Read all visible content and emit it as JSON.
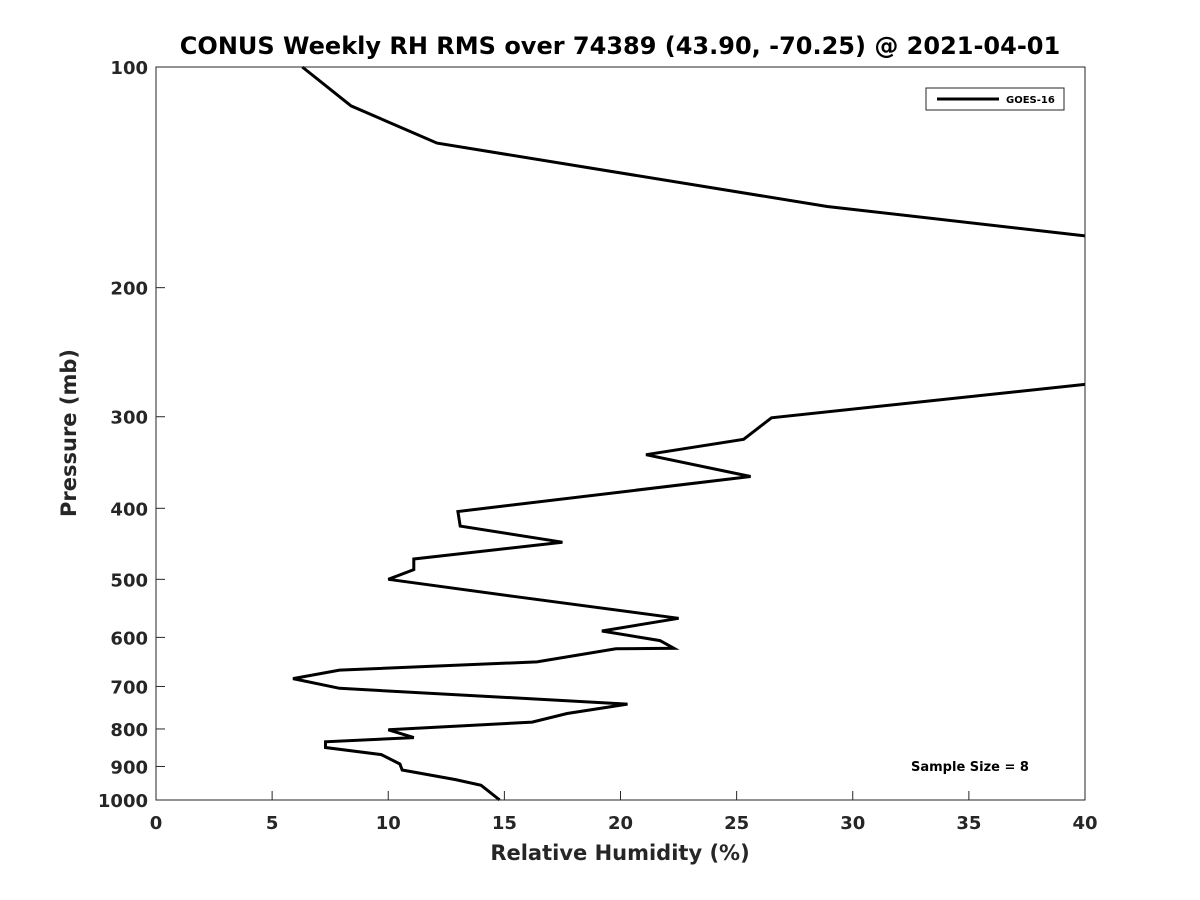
{
  "chart_data": {
    "type": "line",
    "title": "CONUS Weekly RH RMS over 74389 (43.90, -70.25) @ 2021-04-01",
    "xlabel": "Relative Humidity (%)",
    "ylabel": "Pressure (mb)",
    "xlim": [
      0,
      40
    ],
    "ylim": [
      100,
      1000
    ],
    "y_scale": "log",
    "y_direction": "reversed",
    "grid": false,
    "legend_position": "top-right",
    "x_ticks": [
      "0",
      "5",
      "10",
      "15",
      "20",
      "25",
      "30",
      "35",
      "40"
    ],
    "y_ticks": [
      "100",
      "200",
      "300",
      "400",
      "500",
      "600",
      "700",
      "800",
      "900",
      "1000"
    ],
    "annotation": "Sample Size = 8",
    "series": [
      {
        "name": "GOES-16",
        "color": "#000000",
        "segments": [
          [
            [
              6.3,
              100
            ],
            [
              8.4,
              113
            ],
            [
              12.1,
              127
            ],
            [
              28.9,
              155
            ],
            [
              40,
              170
            ]
          ],
          [
            [
              40,
              271
            ],
            [
              26.5,
              301
            ],
            [
              25.3,
              322
            ],
            [
              21.1,
              338
            ],
            [
              25.6,
              362
            ],
            [
              13.0,
              404
            ],
            [
              13.1,
              423
            ],
            [
              17.5,
              445
            ],
            [
              11.1,
              469
            ],
            [
              11.1,
              485
            ],
            [
              10.0,
              500
            ],
            [
              15.5,
              528
            ],
            [
              22.5,
              565
            ],
            [
              19.2,
              588
            ],
            [
              21.7,
              606
            ],
            [
              22.3,
              621
            ],
            [
              19.8,
              622
            ],
            [
              16.4,
              648
            ],
            [
              7.9,
              665
            ],
            [
              5.9,
              683
            ],
            [
              7.9,
              704
            ],
            [
              20.3,
              740
            ],
            [
              17.7,
              762
            ],
            [
              16.2,
              783
            ],
            [
              10.0,
              802
            ],
            [
              11.1,
              822
            ],
            [
              7.3,
              833
            ],
            [
              7.3,
              848
            ],
            [
              9.7,
              867
            ],
            [
              10.5,
              893
            ],
            [
              10.6,
              910
            ],
            [
              12.9,
              938
            ],
            [
              14.0,
              955
            ],
            [
              14.8,
              1000
            ]
          ]
        ]
      }
    ]
  }
}
